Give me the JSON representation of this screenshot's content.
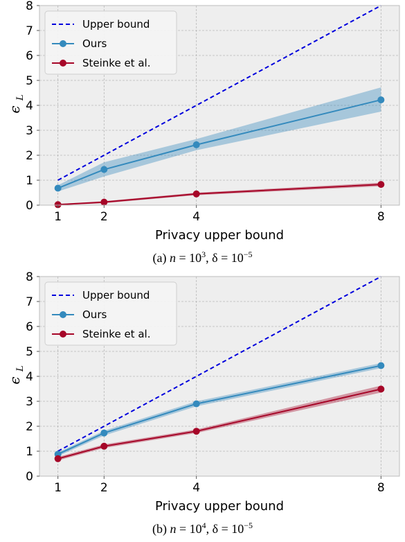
{
  "chart_data": [
    {
      "type": "line",
      "panel": "a",
      "caption": {
        "prefix": "(a) ",
        "n_base": "10",
        "n_exp": "3",
        "delta_base": "10",
        "delta_exp": "−5"
      },
      "xlabel": "Privacy upper bound",
      "ylabel": "ϵ",
      "ylabel_sub": "L",
      "x": [
        1,
        2,
        4,
        8
      ],
      "xticks": [
        "1",
        "2",
        "4",
        "8"
      ],
      "xlim": [
        0.6,
        8.4
      ],
      "ylim": [
        0,
        8
      ],
      "yticks": [
        "0",
        "1",
        "2",
        "3",
        "4",
        "5",
        "6",
        "7",
        "8"
      ],
      "grid": true,
      "legend_position": "top-left",
      "series": [
        {
          "name": "Upper bound",
          "style": "dashed",
          "color": "#0000dd",
          "values": [
            1,
            2,
            4,
            8
          ]
        },
        {
          "name": "Ours",
          "style": "line-marker",
          "color": "#348abd",
          "band_color": "#348abd",
          "values": [
            0.68,
            1.43,
            2.42,
            4.22
          ],
          "lower": [
            0.55,
            1.15,
            2.2,
            3.75
          ],
          "upper": [
            0.8,
            1.72,
            2.65,
            4.72
          ]
        },
        {
          "name": "Steinke et al.",
          "style": "line-marker",
          "color": "#a60628",
          "band_color": "#a60628",
          "values": [
            0.02,
            0.12,
            0.45,
            0.83
          ],
          "lower": [
            0.0,
            0.08,
            0.4,
            0.76
          ],
          "upper": [
            0.05,
            0.16,
            0.5,
            0.9
          ]
        }
      ]
    },
    {
      "type": "line",
      "panel": "b",
      "caption": {
        "prefix": "(b) ",
        "n_base": "10",
        "n_exp": "4",
        "delta_base": "10",
        "delta_exp": "−5"
      },
      "xlabel": "Privacy upper bound",
      "ylabel": "ϵ",
      "ylabel_sub": "L",
      "x": [
        1,
        2,
        4,
        8
      ],
      "xticks": [
        "1",
        "2",
        "4",
        "8"
      ],
      "xlim": [
        0.6,
        8.4
      ],
      "ylim": [
        0,
        8
      ],
      "yticks": [
        "0",
        "1",
        "2",
        "3",
        "4",
        "5",
        "6",
        "7",
        "8"
      ],
      "grid": true,
      "legend_position": "top-left",
      "series": [
        {
          "name": "Upper bound",
          "style": "dashed",
          "color": "#0000dd",
          "values": [
            1,
            2,
            4,
            8
          ]
        },
        {
          "name": "Ours",
          "style": "line-marker",
          "color": "#348abd",
          "band_color": "#348abd",
          "values": [
            0.88,
            1.73,
            2.9,
            4.43
          ],
          "lower": [
            0.8,
            1.63,
            2.8,
            4.33
          ],
          "upper": [
            0.95,
            1.82,
            3.0,
            4.53
          ]
        },
        {
          "name": "Steinke et al.",
          "style": "line-marker",
          "color": "#a60628",
          "band_color": "#a60628",
          "values": [
            0.7,
            1.2,
            1.8,
            3.49
          ],
          "lower": [
            0.63,
            1.13,
            1.73,
            3.35
          ],
          "upper": [
            0.77,
            1.27,
            1.87,
            3.63
          ]
        }
      ]
    }
  ]
}
